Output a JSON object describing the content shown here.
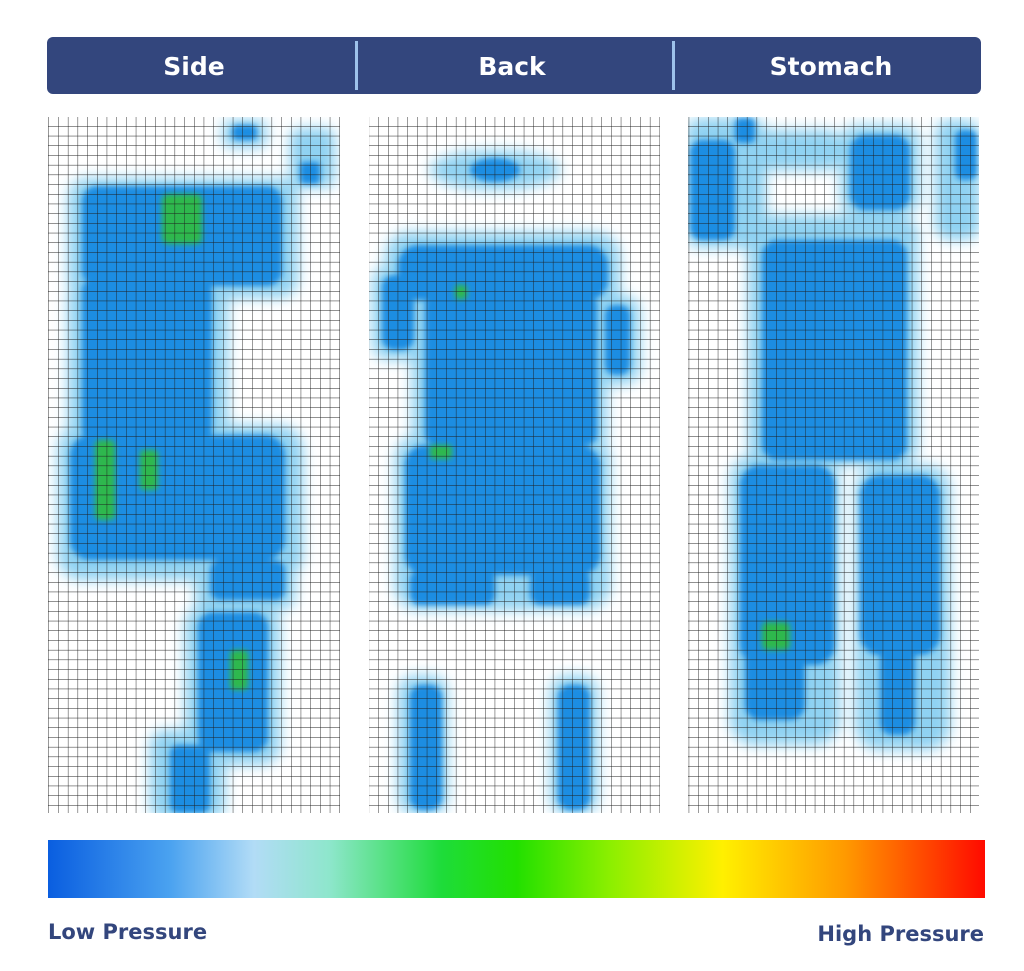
{
  "header": {
    "positions": [
      "Side",
      "Back",
      "Stomach"
    ]
  },
  "legend": {
    "low": "Low Pressure",
    "high": "High Pressure"
  }
}
